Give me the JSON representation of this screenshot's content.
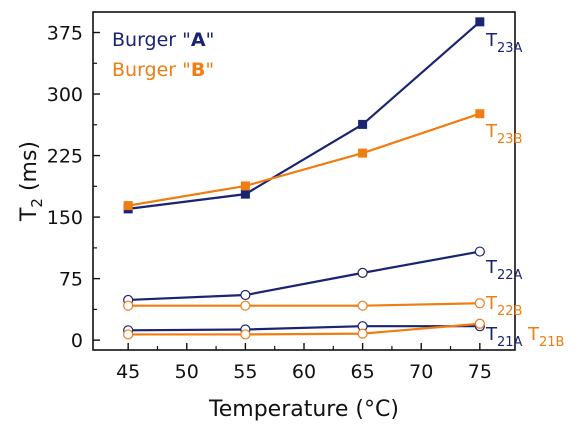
{
  "chart_data": {
    "type": "line",
    "xlabel": "Temperature (°C)",
    "ylabel": {
      "base": "T",
      "sub": "2",
      "rest": " (ms)"
    },
    "xlim": [
      42,
      78
    ],
    "ylim": [
      -12,
      400
    ],
    "xticks": [
      45,
      50,
      55,
      60,
      65,
      70,
      75
    ],
    "yticks": [
      0,
      75,
      150,
      225,
      300,
      375
    ],
    "legend": {
      "position": "top-left",
      "entries": [
        {
          "prefix": "Burger \"",
          "letter": "A",
          "suffix": "\"",
          "color": "#1a2470"
        },
        {
          "prefix": "Burger \"",
          "letter": "B",
          "suffix": "\"",
          "color": "#ef7d12"
        }
      ]
    },
    "colors": {
      "A": "#1a2470",
      "B": "#ef7d12"
    },
    "series": [
      {
        "name": "T23A",
        "label_base": "T",
        "label_sub": "23A",
        "group": "A",
        "marker": "square-filled",
        "x": [
          45,
          55,
          65,
          75
        ],
        "values": [
          160,
          178,
          263,
          388
        ]
      },
      {
        "name": "T23B",
        "label_base": "T",
        "label_sub": "23B",
        "group": "B",
        "marker": "square-filled",
        "x": [
          45,
          55,
          65,
          75
        ],
        "values": [
          164,
          188,
          228,
          276
        ]
      },
      {
        "name": "T22A",
        "label_base": "T",
        "label_sub": "22A",
        "group": "A",
        "marker": "circle-open",
        "x": [
          45,
          55,
          65,
          75
        ],
        "values": [
          49,
          55,
          82,
          108
        ]
      },
      {
        "name": "T22B",
        "label_base": "T",
        "label_sub": "22B",
        "group": "B",
        "marker": "circle-open",
        "x": [
          45,
          55,
          65,
          75
        ],
        "values": [
          42,
          42,
          42,
          45
        ]
      },
      {
        "name": "T21A",
        "label_base": "T",
        "label_sub": "21A",
        "group": "A",
        "marker": "circle-open",
        "x": [
          45,
          55,
          65,
          75
        ],
        "values": [
          12,
          13,
          17,
          17
        ]
      },
      {
        "name": "T21B",
        "label_base": "T",
        "label_sub": "21B",
        "group": "B",
        "marker": "circle-open",
        "x": [
          45,
          55,
          65,
          75
        ],
        "values": [
          7,
          7,
          8,
          20
        ]
      }
    ]
  }
}
